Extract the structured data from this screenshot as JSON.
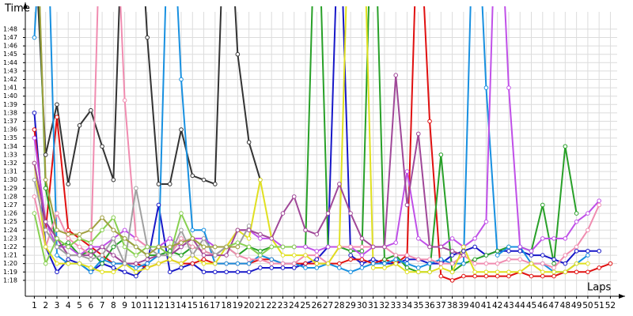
{
  "chart_data": {
    "type": "line",
    "y_label": "Time",
    "x_label": "Laps",
    "x": [
      1,
      2,
      3,
      4,
      5,
      6,
      7,
      8,
      9,
      10,
      11,
      12,
      13,
      14,
      15,
      16,
      17,
      18,
      19,
      20,
      21,
      22,
      23,
      24,
      25,
      26,
      27,
      28,
      29,
      30,
      31,
      32,
      33,
      34,
      35,
      36,
      37,
      38,
      39,
      40,
      41,
      42,
      43,
      44,
      45,
      46,
      47,
      48,
      49,
      50,
      51,
      52
    ],
    "xlim": [
      0.2,
      53.3
    ],
    "xticks": [
      1,
      2,
      3,
      4,
      5,
      6,
      7,
      8,
      9,
      10,
      11,
      12,
      13,
      14,
      15,
      16,
      17,
      18,
      19,
      20,
      21,
      22,
      23,
      24,
      25,
      26,
      27,
      28,
      29,
      30,
      31,
      32,
      33,
      34,
      35,
      36,
      37,
      38,
      39,
      40,
      41,
      42,
      43,
      44,
      45,
      46,
      47,
      48,
      49,
      50,
      51,
      52
    ],
    "ylim": [
      76.1,
      111.2
    ],
    "yticks": [
      {
        "value": 78,
        "label": "1:18"
      },
      {
        "value": 79,
        "label": "1:19"
      },
      {
        "value": 80,
        "label": "1:20"
      },
      {
        "value": 81,
        "label": "1:21"
      },
      {
        "value": 82,
        "label": "1:22"
      },
      {
        "value": 83,
        "label": "1:23"
      },
      {
        "value": 84,
        "label": "1:24"
      },
      {
        "value": 85,
        "label": "1:25"
      },
      {
        "value": 86,
        "label": "1:26"
      },
      {
        "value": 87,
        "label": "1:27"
      },
      {
        "value": 88,
        "label": "1:28"
      },
      {
        "value": 89,
        "label": "1:29"
      },
      {
        "value": 90,
        "label": "1:30"
      },
      {
        "value": 91,
        "label": "1:31"
      },
      {
        "value": 92,
        "label": "1:32"
      },
      {
        "value": 93,
        "label": "1:33"
      },
      {
        "value": 94,
        "label": "1:34"
      },
      {
        "value": 95,
        "label": "1:35"
      },
      {
        "value": 96,
        "label": "1:36"
      },
      {
        "value": 97,
        "label": "1:37"
      },
      {
        "value": 98,
        "label": "1:38"
      },
      {
        "value": 99,
        "label": "1:39"
      },
      {
        "value": 100,
        "label": "1:40"
      },
      {
        "value": 101,
        "label": "1:41"
      },
      {
        "value": 102,
        "label": "1:42"
      },
      {
        "value": 103,
        "label": "1:43"
      },
      {
        "value": 104,
        "label": "1:44"
      },
      {
        "value": 105,
        "label": "1:45"
      },
      {
        "value": 106,
        "label": "1:46"
      },
      {
        "value": 107,
        "label": "1:47"
      },
      {
        "value": 108,
        "label": "1:48"
      }
    ],
    "grid": true,
    "series": [
      {
        "color": "#333333",
        "values": [
          120,
          93,
          99,
          89.5,
          96.5,
          98.3,
          94,
          90,
          130,
          130,
          107,
          89.5,
          89.5,
          96,
          90.5,
          90,
          89.5,
          130,
          105,
          94.5,
          90,
          null,
          null,
          null,
          null,
          null,
          null,
          null,
          null,
          null,
          null,
          null,
          null,
          null,
          null,
          null,
          null,
          null,
          null,
          null,
          null,
          null,
          null,
          null,
          null,
          null,
          null,
          null,
          null,
          null,
          null,
          null
        ]
      },
      {
        "color": "#1818c8",
        "values": [
          98,
          82,
          79,
          80.5,
          80,
          79,
          80,
          79.5,
          79,
          78.5,
          80,
          87,
          79,
          79.5,
          80,
          79,
          79,
          79,
          79,
          79,
          79.5,
          79.5,
          79.5,
          79.5,
          80,
          80.5,
          82,
          125,
          81,
          80,
          80.5,
          80,
          80,
          80.5,
          80.5,
          80,
          80,
          81,
          81.5,
          82,
          81,
          81.5,
          81.5,
          81.5,
          81,
          81,
          80.5,
          80,
          81.5,
          81.5,
          81.5,
          null
        ]
      },
      {
        "color": "#e01010",
        "values": [
          96,
          84,
          97.5,
          84,
          83,
          82,
          81,
          80,
          80,
          80,
          79.5,
          80,
          80.5,
          80,
          80,
          80.5,
          80,
          80,
          80,
          80,
          80.5,
          80.5,
          80,
          80,
          80,
          80,
          80,
          80,
          80.5,
          80.5,
          80,
          80.5,
          80,
          81,
          125,
          97,
          78.5,
          78,
          78.5,
          78.5,
          78.5,
          78.5,
          78.5,
          79,
          78.5,
          78.5,
          78.5,
          79,
          79,
          79,
          79.5,
          80
        ]
      },
      {
        "color": "#28a028",
        "values": [
          130,
          89,
          82,
          82.5,
          81,
          81.5,
          80,
          82,
          83,
          82,
          81,
          81,
          81.5,
          81,
          82,
          81.5,
          81,
          82,
          81,
          82,
          81.5,
          82,
          82,
          82,
          82,
          130,
          82,
          82,
          81.5,
          81.5,
          130,
          80.5,
          81,
          79.5,
          79,
          79,
          93,
          79,
          80,
          80.5,
          81,
          81.5,
          82,
          82,
          81.5,
          87,
          80,
          94,
          86,
          null,
          null,
          null
        ]
      },
      {
        "color": "#1890e0",
        "values": [
          107,
          130,
          81,
          80,
          80,
          79,
          80.5,
          80,
          80,
          79.5,
          80,
          81,
          130,
          102,
          84,
          84,
          80,
          80,
          80,
          80,
          81,
          80.5,
          80,
          80,
          79.5,
          79.5,
          80,
          79.5,
          79,
          79.5,
          80,
          80,
          80.5,
          80,
          79.5,
          80,
          80.5,
          80,
          80,
          130,
          101,
          81,
          82,
          82,
          80,
          80,
          79,
          79,
          80,
          81,
          null,
          null
        ]
      },
      {
        "color": "#c050e8",
        "values": [
          95,
          85,
          82,
          82,
          81,
          82,
          82,
          83,
          84,
          83,
          82,
          82,
          83,
          82,
          83,
          83,
          82,
          82,
          84,
          84,
          83,
          83,
          82,
          82,
          82,
          81.5,
          82,
          82,
          82,
          81,
          82,
          82,
          82.5,
          91,
          83,
          82,
          82,
          83,
          82,
          83,
          85,
          130,
          101,
          82,
          81.5,
          83,
          83,
          83,
          85,
          86,
          87.5,
          null
        ]
      },
      {
        "color": "#f08cb0",
        "values": [
          88,
          82,
          86,
          83,
          82,
          81,
          130,
          130,
          99.5,
          83,
          82,
          82,
          81,
          83,
          82,
          81.5,
          81,
          82,
          81,
          80.5,
          80.5,
          80,
          80,
          80,
          81,
          81,
          80,
          82,
          82,
          82,
          82,
          82,
          81,
          81,
          80.5,
          80.5,
          80,
          80,
          81,
          80,
          80,
          80,
          80.5,
          80.5,
          80,
          80,
          79.5,
          81,
          82,
          84,
          87,
          null
        ]
      },
      {
        "color": "#e0e020",
        "values": [
          92,
          82,
          80,
          80,
          80,
          79.5,
          79,
          79,
          80,
          79,
          79.5,
          80,
          80.5,
          80,
          81,
          80,
          80,
          82,
          84,
          83,
          90,
          83,
          81,
          81,
          81,
          80,
          80,
          82,
          130,
          130,
          79.5,
          79.5,
          80,
          79,
          79,
          79,
          79.5,
          79,
          82,
          79,
          79,
          79,
          79,
          79,
          80,
          79,
          79,
          79,
          80,
          80,
          null,
          null
        ]
      },
      {
        "color": "#a04898",
        "values": [
          92,
          85,
          83,
          81,
          81,
          81,
          82,
          81,
          80,
          80,
          80.5,
          81,
          81,
          82,
          83,
          81,
          81,
          81,
          84,
          84,
          83.5,
          83,
          86,
          88,
          84,
          83.5,
          86,
          89.5,
          86,
          83,
          82,
          82,
          102.5,
          87,
          95.5,
          82,
          82,
          81.5,
          81,
          null,
          null,
          null,
          null,
          null,
          null,
          null,
          null,
          null,
          null,
          null,
          null,
          null
        ]
      },
      {
        "color": "#a0a0a0",
        "values": [
          90,
          84,
          82,
          81,
          81,
          80.5,
          81,
          83,
          80,
          89,
          82,
          81,
          81,
          84,
          81,
          83,
          81,
          82,
          82,
          84.5,
          null,
          null,
          null,
          null,
          null,
          null,
          null,
          null,
          null,
          null,
          null,
          null,
          null,
          null,
          null,
          null,
          null,
          null,
          null,
          null,
          null,
          null,
          null,
          null,
          null,
          null,
          null,
          null,
          null,
          null,
          null,
          null
        ]
      },
      {
        "color": "#88d050",
        "values": [
          86,
          80,
          83,
          82,
          83,
          82.5,
          84,
          85.5,
          82,
          81,
          82,
          82,
          81,
          86,
          83,
          82,
          82,
          82,
          82.5,
          82,
          81,
          82,
          82,
          82,
          null,
          null,
          null,
          null,
          null,
          null,
          null,
          null,
          null,
          null,
          null,
          null,
          null,
          null,
          null,
          null,
          null,
          null,
          null,
          null,
          null,
          null,
          null,
          null,
          null,
          null,
          null,
          null
        ]
      },
      {
        "color": "#a0a040",
        "values": [
          130,
          90,
          84,
          83.5,
          83.5,
          84,
          85.5,
          84,
          83,
          82,
          81,
          82,
          82,
          82.5,
          83,
          82,
          82,
          82,
          82,
          null,
          null,
          null,
          null,
          null,
          null,
          null,
          null,
          null,
          null,
          null,
          null,
          null,
          null,
          null,
          null,
          null,
          null,
          null,
          null,
          null,
          null,
          null,
          null,
          null,
          null,
          null,
          null,
          null,
          null,
          null,
          null,
          null
        ]
      }
    ]
  }
}
